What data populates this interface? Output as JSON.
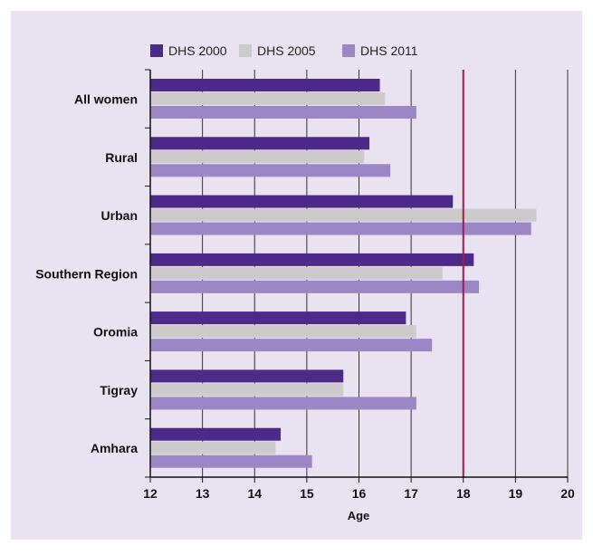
{
  "colors": {
    "background": "#e8e2f1",
    "grid": "#333333",
    "reference_line": "#a3194d",
    "series": [
      "#4b2a8a",
      "#cbcbcb",
      "#9b87c6"
    ]
  },
  "chart_data": {
    "type": "bar",
    "orientation": "horizontal",
    "categories": [
      "All women",
      "Rural",
      "Urban",
      "Southern Region",
      "Oromia",
      "Tigray",
      "Amhara"
    ],
    "series": [
      {
        "name": "DHS 2000",
        "values": [
          16.4,
          16.2,
          17.8,
          18.2,
          16.9,
          15.7,
          14.5
        ]
      },
      {
        "name": "DHS 2005",
        "values": [
          16.5,
          16.1,
          19.4,
          17.6,
          17.1,
          15.7,
          14.4
        ]
      },
      {
        "name": "DHS 2011",
        "values": [
          17.1,
          16.6,
          19.3,
          18.3,
          17.4,
          17.1,
          15.1
        ]
      }
    ],
    "xlabel": "Age",
    "xlim": [
      12,
      20
    ],
    "xticks": [
      "12",
      "13",
      "14",
      "15",
      "16",
      "17",
      "18",
      "19",
      "20"
    ],
    "reference_line": 18,
    "grid": "vertical",
    "legend_position": "top"
  }
}
